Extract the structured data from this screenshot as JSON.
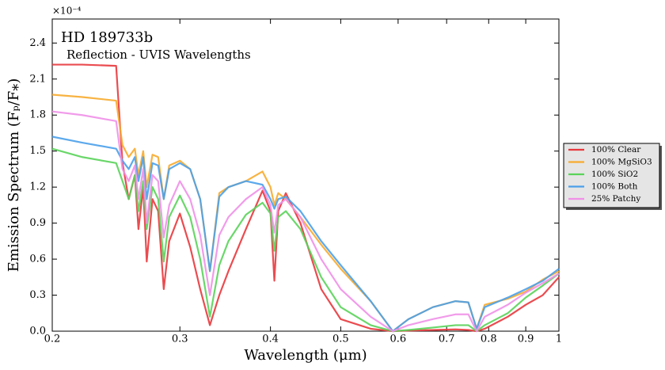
{
  "chart_data": {
    "type": "line",
    "title": "HD 189733b",
    "subtitle": "Reflection - UVIS Wavelengths",
    "x_label": "Wavelength (μm)",
    "y_label": "Emission Spectrum (Fₚ/F⁎)",
    "y_multiplier": "×10⁻⁴",
    "xscale": "log",
    "xlim": [
      0.2,
      1
    ],
    "xticks": [
      0.2,
      0.3,
      0.4,
      0.5,
      0.6,
      0.7,
      0.8,
      0.9,
      1
    ],
    "ylim": [
      0,
      2.6
    ],
    "yticks": [
      {
        "value": 0,
        "label": "0.0"
      },
      0.3,
      0.6,
      0.9,
      1.2,
      1.5,
      1.8,
      2.1,
      2.4
    ],
    "grid": false,
    "legend": "right",
    "x": [
      0.2,
      0.22,
      0.245,
      0.25,
      0.255,
      0.26,
      0.263,
      0.267,
      0.27,
      0.275,
      0.28,
      0.285,
      0.29,
      0.3,
      0.31,
      0.32,
      0.33,
      0.34,
      0.35,
      0.37,
      0.39,
      0.4,
      0.405,
      0.41,
      0.42,
      0.44,
      0.47,
      0.5,
      0.55,
      0.59,
      0.62,
      0.67,
      0.72,
      0.75,
      0.77,
      0.79,
      0.85,
      0.9,
      0.95,
      1.0
    ],
    "series": [
      {
        "name": "100% Clear",
        "color": "#e8383d",
        "values": [
          2.22,
          2.22,
          2.21,
          1.4,
          1.1,
          1.3,
          0.85,
          1.2,
          0.58,
          1.1,
          1.0,
          0.35,
          0.75,
          0.98,
          0.7,
          0.35,
          0.05,
          0.3,
          0.5,
          0.85,
          1.17,
          1.0,
          0.42,
          1.0,
          1.15,
          0.9,
          0.35,
          0.1,
          0.02,
          0.0,
          0.005,
          0.01,
          0.015,
          0.01,
          0.0,
          0.02,
          0.12,
          0.22,
          0.3,
          0.45
        ]
      },
      {
        "name": "100% MgSiO3",
        "color": "#f7ab2e",
        "values": [
          1.97,
          1.95,
          1.92,
          1.55,
          1.45,
          1.52,
          1.3,
          1.5,
          1.2,
          1.47,
          1.45,
          1.1,
          1.38,
          1.42,
          1.35,
          1.1,
          0.5,
          1.15,
          1.2,
          1.25,
          1.33,
          1.2,
          1.05,
          1.15,
          1.1,
          0.95,
          0.72,
          0.52,
          0.25,
          0.0,
          0.1,
          0.2,
          0.25,
          0.24,
          0.02,
          0.22,
          0.27,
          0.33,
          0.43,
          0.5
        ]
      },
      {
        "name": "100% SiO2",
        "color": "#5ad35a",
        "values": [
          1.52,
          1.45,
          1.4,
          1.25,
          1.1,
          1.3,
          1.0,
          1.25,
          0.85,
          1.2,
          1.1,
          0.58,
          0.95,
          1.13,
          0.95,
          0.6,
          0.12,
          0.55,
          0.75,
          0.97,
          1.07,
          0.98,
          0.67,
          0.95,
          1.0,
          0.85,
          0.45,
          0.2,
          0.05,
          0.0,
          0.01,
          0.03,
          0.05,
          0.05,
          0.0,
          0.05,
          0.15,
          0.28,
          0.38,
          0.48
        ]
      },
      {
        "name": "100% Both",
        "color": "#4aa0ea",
        "values": [
          1.62,
          1.57,
          1.52,
          1.42,
          1.35,
          1.45,
          1.25,
          1.45,
          1.1,
          1.4,
          1.38,
          1.1,
          1.35,
          1.4,
          1.35,
          1.1,
          0.5,
          1.12,
          1.2,
          1.25,
          1.22,
          1.1,
          1.02,
          1.1,
          1.12,
          1.0,
          0.75,
          0.55,
          0.25,
          0.0,
          0.1,
          0.2,
          0.25,
          0.24,
          0.02,
          0.2,
          0.28,
          0.35,
          0.42,
          0.52
        ]
      },
      {
        "name": "25% Patchy",
        "color": "#f090e8",
        "values": [
          1.83,
          1.8,
          1.75,
          1.35,
          1.25,
          1.38,
          1.1,
          1.35,
          0.9,
          1.3,
          1.25,
          0.78,
          1.05,
          1.25,
          1.1,
          0.8,
          0.3,
          0.8,
          0.95,
          1.1,
          1.2,
          1.05,
          0.82,
          1.05,
          1.1,
          0.95,
          0.6,
          0.35,
          0.12,
          0.0,
          0.05,
          0.1,
          0.14,
          0.14,
          0.0,
          0.12,
          0.22,
          0.32,
          0.4,
          0.48
        ]
      }
    ]
  }
}
